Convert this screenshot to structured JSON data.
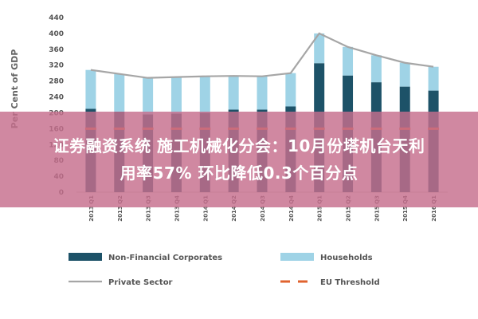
{
  "overlay": {
    "line1": "证券融资系统 施工机械化分会：10月份塔机台天利",
    "line2": "用率57% 环比降低0.3个百分点"
  },
  "colors": {
    "nfc": "#1d5268",
    "households": "#9fd3e6",
    "private_sector": "#a6a6a6",
    "eu_threshold": "#e0632f",
    "axis_text": "#555555",
    "overlay": "#c66e8c"
  },
  "chart_data": {
    "type": "bar",
    "stacked": true,
    "ylabel": "Per Cent of GDP",
    "ylim": [
      0,
      440
    ],
    "yticks": [
      0,
      40,
      80,
      120,
      160,
      200,
      240,
      280,
      320,
      360,
      400,
      440
    ],
    "categories": [
      "2013 Q1",
      "2013 Q2",
      "2013 Q3",
      "2013 Q4",
      "2014 Q1",
      "2014 Q2",
      "2014 Q3",
      "2014 Q4",
      "2015 Q1",
      "2015 Q2",
      "2015 Q3",
      "2015 Q4",
      "2016 Q1"
    ],
    "series": [
      {
        "name": "Non-Financial Corporates",
        "kind": "bar",
        "values": [
          210,
          203,
          196,
          198,
          200,
          208,
          208,
          216,
          325,
          294,
          277,
          266,
          256
        ]
      },
      {
        "name": "Households",
        "kind": "bar",
        "values": [
          98,
          95,
          92,
          92,
          92,
          85,
          84,
          84,
          75,
          72,
          68,
          60,
          60
        ]
      },
      {
        "name": "Private Sector",
        "kind": "line",
        "values": [
          308,
          298,
          288,
          290,
          292,
          293,
          292,
          300,
          400,
          366,
          345,
          326,
          316
        ]
      },
      {
        "name": "EU Threshold",
        "kind": "dashed-line",
        "values": [
          160,
          160,
          160,
          160,
          160,
          160,
          160,
          160,
          160,
          160,
          160,
          160,
          160
        ]
      }
    ],
    "legend": [
      {
        "label": "Non-Financial Corporates",
        "type": "box",
        "color": "#1d5268"
      },
      {
        "label": "Households",
        "type": "box",
        "color": "#9fd3e6"
      },
      {
        "label": "Private Sector",
        "type": "line",
        "color": "#a6a6a6"
      },
      {
        "label": "EU Threshold",
        "type": "dash",
        "color": "#e0632f"
      }
    ],
    "legend_position": "bottom",
    "grid": false
  }
}
